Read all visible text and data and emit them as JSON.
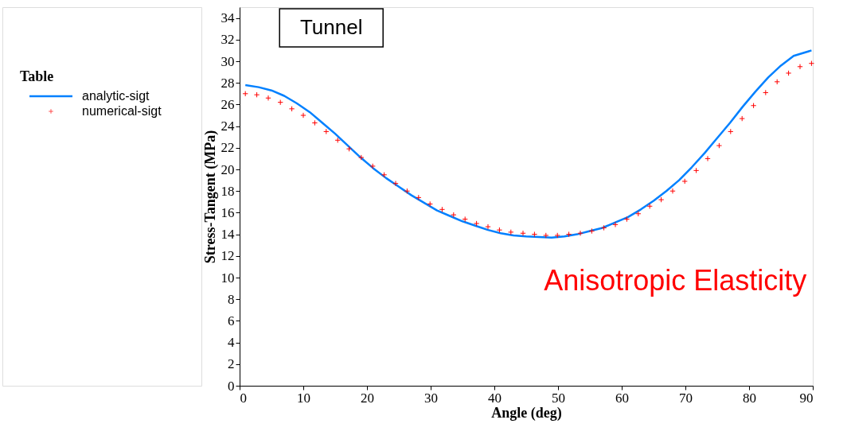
{
  "chart_data": {
    "type": "line",
    "xlabel": "Angle (deg)",
    "ylabel": "Stress-Tangent (MPa)",
    "legend_title": "Table",
    "annotations": [
      "Tunnel",
      "Anisotropic Elasticity"
    ],
    "xlim": [
      0,
      90
    ],
    "xticks": [
      0,
      10,
      20,
      30,
      40,
      50,
      60,
      70,
      80,
      90
    ],
    "ylim": [
      0,
      35
    ],
    "yticks": [
      0,
      2,
      4,
      6,
      8,
      10,
      12,
      14,
      16,
      18,
      20,
      22,
      24,
      26,
      28,
      30,
      32,
      34
    ],
    "grid": false,
    "legend": "left",
    "series": [
      {
        "name": "analytic-sigt",
        "color": "#0080ff",
        "line_style": "solid",
        "marker": "none",
        "x": [
          0.9,
          3,
          5,
          7,
          9,
          11,
          13,
          15,
          17,
          19,
          21,
          23,
          25,
          27,
          29,
          31,
          33,
          35,
          37,
          39,
          41,
          43,
          45,
          47,
          49,
          51,
          53,
          55,
          57,
          59,
          61,
          63,
          65,
          67,
          69,
          71,
          73,
          75,
          77,
          79,
          81,
          83,
          85,
          87,
          89.8
        ],
        "values": [
          27.8,
          27.6,
          27.3,
          26.8,
          26.1,
          25.3,
          24.3,
          23.3,
          22.2,
          21.1,
          20.1,
          19.2,
          18.4,
          17.6,
          16.9,
          16.2,
          15.7,
          15.2,
          14.8,
          14.4,
          14.1,
          13.9,
          13.8,
          13.75,
          13.7,
          13.8,
          14.0,
          14.3,
          14.6,
          15.1,
          15.6,
          16.3,
          17.1,
          18.0,
          19.0,
          20.2,
          21.5,
          22.9,
          24.3,
          25.8,
          27.2,
          28.5,
          29.6,
          30.5,
          31.0
        ]
      },
      {
        "name": "numerical-sigt",
        "type": "scatter",
        "color": "#ff0000",
        "marker": "cross",
        "x": [
          0.9,
          2.7,
          4.5,
          6.4,
          8.2,
          10.0,
          11.8,
          13.6,
          15.4,
          17.2,
          19.1,
          20.9,
          22.7,
          24.5,
          26.3,
          28.1,
          29.9,
          31.8,
          33.6,
          35.4,
          37.2,
          39.0,
          40.8,
          42.6,
          44.5,
          46.3,
          48.1,
          49.9,
          51.7,
          53.5,
          55.3,
          57.2,
          59.0,
          60.8,
          62.6,
          64.4,
          66.2,
          68.0,
          69.9,
          71.7,
          73.5,
          75.3,
          77.1,
          78.9,
          80.7,
          82.6,
          84.4,
          86.2,
          88.0,
          89.8
        ],
        "values": [
          27.0,
          26.9,
          26.6,
          26.2,
          25.6,
          25.0,
          24.3,
          23.5,
          22.7,
          21.9,
          21.1,
          20.3,
          19.5,
          18.7,
          18.0,
          17.4,
          16.8,
          16.3,
          15.8,
          15.4,
          15.0,
          14.7,
          14.4,
          14.2,
          14.1,
          14.0,
          13.9,
          13.9,
          14.0,
          14.1,
          14.3,
          14.6,
          14.9,
          15.4,
          15.9,
          16.6,
          17.2,
          18.0,
          18.9,
          19.9,
          21.0,
          22.2,
          23.5,
          24.7,
          25.9,
          27.1,
          28.1,
          28.9,
          29.5,
          29.8
        ]
      }
    ]
  }
}
